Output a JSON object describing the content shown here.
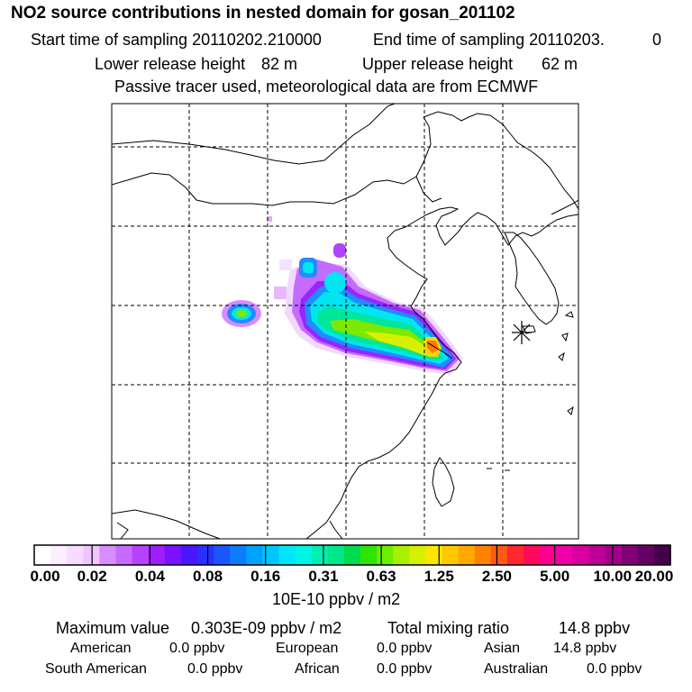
{
  "header": {
    "title": "NO2 source contributions in nested domain for gosan_201102",
    "start_label": "Start time of sampling 20110202.210000",
    "end_label": "End time of sampling 20110203.",
    "end_value": "0",
    "lower_label": "Lower release height",
    "lower_value": "82 m",
    "upper_label": "Upper release height",
    "upper_value": "62 m",
    "note": "Passive tracer used, meteorological data are from ECMWF"
  },
  "colorbar": {
    "ticks": [
      "0.00",
      "0.02",
      "0.04",
      "0.08",
      "0.16",
      "0.31",
      "0.63",
      "1.25",
      "2.50",
      "5.00",
      "10.00",
      "20.00"
    ],
    "unit": "10E-10 ppbv / m2",
    "colors": [
      "#ffffff",
      "#fcefff",
      "#f7dcff",
      "#f0c4ff",
      "#d78cff",
      "#c86aff",
      "#b742ff",
      "#a11cff",
      "#7b12ff",
      "#4a16ff",
      "#2a30ff",
      "#1a55ff",
      "#0a7dff",
      "#00a2ff",
      "#00c6ff",
      "#00e6ff",
      "#00f5e6",
      "#00f0b4",
      "#00e68a",
      "#00dc50",
      "#2ee500",
      "#6af000",
      "#a8f000",
      "#d8f000",
      "#ffe600",
      "#ffc800",
      "#ffaa00",
      "#ff8200",
      "#ff5a14",
      "#ff2830",
      "#ff0a5a",
      "#ff0090",
      "#f000a8",
      "#d8009e",
      "#be0096",
      "#a0008c",
      "#820078",
      "#640064",
      "#46004a"
    ]
  },
  "summary": {
    "max_label": "Maximum value",
    "max_value": "0.303E-09 ppbv / m2",
    "total_label": "Total mixing ratio",
    "total_value": "14.8 ppbv",
    "regions": [
      {
        "name": "American",
        "value": "0.0 ppbv"
      },
      {
        "name": "European",
        "value": "0.0 ppbv"
      },
      {
        "name": "Asian",
        "value": "14.8 ppbv"
      },
      {
        "name": "South American",
        "value": "0.0 ppbv"
      },
      {
        "name": "African",
        "value": "0.0 ppbv"
      },
      {
        "name": "Australian",
        "value": "0.0 ppbv"
      }
    ]
  },
  "map": {
    "grid_style": "dashed",
    "receptor_marker": "asterisk",
    "plume_levels": [
      "#f2d8ff",
      "#d07cff",
      "#aa2cff",
      "#1f8cff",
      "#00e6f0",
      "#00e69a",
      "#7de800",
      "#ffd400",
      "#ff7800"
    ]
  }
}
